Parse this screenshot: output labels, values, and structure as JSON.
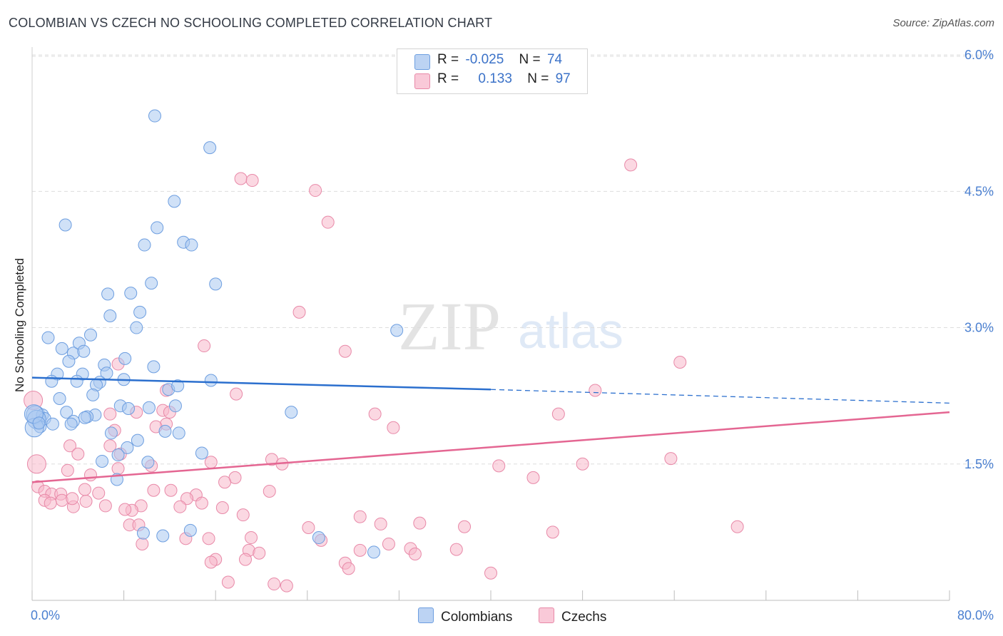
{
  "header": {
    "title": "COLOMBIAN VS CZECH NO SCHOOLING COMPLETED CORRELATION CHART",
    "source": "Source: ZipAtlas.com"
  },
  "watermark": {
    "zip": "ZIP",
    "atlas": "atlas"
  },
  "colors": {
    "blue_fill": "#a9c8f0",
    "blue_stroke": "#6d9ee0",
    "blue_line": "#2b6fce",
    "pink_fill": "#f7b8cb",
    "pink_stroke": "#e889a8",
    "pink_line": "#e46692",
    "tick_text": "#4a7fd0",
    "grid": "#dddddd"
  },
  "legend": {
    "rows": [
      {
        "r_label": "R =",
        "r_value": "-0.025",
        "n_label": "N =",
        "n_value": "74"
      },
      {
        "r_label": "R =",
        "r_value": "0.133",
        "n_label": "N =",
        "n_value": "97"
      }
    ]
  },
  "bottom_legend": {
    "colombians": "Colombians",
    "czechs": "Czechs"
  },
  "chart_data": {
    "type": "scatter",
    "title": "COLOMBIAN VS CZECH NO SCHOOLING COMPLETED CORRELATION CHART",
    "xlabel": "",
    "ylabel": "No Schooling Completed",
    "xlim": [
      0,
      80
    ],
    "ylim": [
      0,
      6.15
    ],
    "x_tick_labels": [
      "0.0%",
      "80.0%"
    ],
    "y_ticks": [
      1.5,
      3.0,
      4.5,
      6.0
    ],
    "y_tick_labels": [
      "1.5%",
      "3.0%",
      "4.5%",
      "6.0%"
    ],
    "grid": "horizontal dashed",
    "legend_placement": "top-center",
    "series": [
      {
        "name": "Colombians",
        "r": -0.025,
        "n": 74,
        "trend": {
          "x_start": 0,
          "y_start": 2.45,
          "x_solid_end": 40,
          "y_solid_end": 2.32,
          "x_end": 80,
          "y_end": 2.17
        },
        "points": [
          [
            10.7,
            5.33
          ],
          [
            15.5,
            4.98
          ],
          [
            12.4,
            4.39
          ],
          [
            2.9,
            4.13
          ],
          [
            10.9,
            4.1
          ],
          [
            9.8,
            3.91
          ],
          [
            13.2,
            3.94
          ],
          [
            13.9,
            3.91
          ],
          [
            16.0,
            3.48
          ],
          [
            10.4,
            3.49
          ],
          [
            6.6,
            3.37
          ],
          [
            8.6,
            3.38
          ],
          [
            9.4,
            3.17
          ],
          [
            6.8,
            3.13
          ],
          [
            9.1,
            3.0
          ],
          [
            31.8,
            2.97
          ],
          [
            1.4,
            2.89
          ],
          [
            5.1,
            2.92
          ],
          [
            3.6,
            2.72
          ],
          [
            4.1,
            2.83
          ],
          [
            4.5,
            2.74
          ],
          [
            2.6,
            2.77
          ],
          [
            8.1,
            2.66
          ],
          [
            3.2,
            2.63
          ],
          [
            6.3,
            2.59
          ],
          [
            10.6,
            2.57
          ],
          [
            4.4,
            2.49
          ],
          [
            6.5,
            2.5
          ],
          [
            2.2,
            2.49
          ],
          [
            1.7,
            2.41
          ],
          [
            3.9,
            2.41
          ],
          [
            5.9,
            2.4
          ],
          [
            8.0,
            2.43
          ],
          [
            5.6,
            2.37
          ],
          [
            15.6,
            2.42
          ],
          [
            11.9,
            2.32
          ],
          [
            12.7,
            2.36
          ],
          [
            2.4,
            2.22
          ],
          [
            5.3,
            2.26
          ],
          [
            7.7,
            2.14
          ],
          [
            12.5,
            2.14
          ],
          [
            10.2,
            2.12
          ],
          [
            8.4,
            2.11
          ],
          [
            3.0,
            2.07
          ],
          [
            0.3,
            2.04
          ],
          [
            0.9,
            2.04
          ],
          [
            1.1,
            2.0
          ],
          [
            0.4,
            1.99
          ],
          [
            22.6,
            2.07
          ],
          [
            5.5,
            2.04
          ],
          [
            4.8,
            2.02
          ],
          [
            4.6,
            2.01
          ],
          [
            3.6,
            1.97
          ],
          [
            1.8,
            1.94
          ],
          [
            3.4,
            1.94
          ],
          [
            0.7,
            1.91
          ],
          [
            0.2,
            1.9
          ],
          [
            6.9,
            1.84
          ],
          [
            11.6,
            1.86
          ],
          [
            12.8,
            1.84
          ],
          [
            9.2,
            1.76
          ],
          [
            8.3,
            1.68
          ],
          [
            7.5,
            1.6
          ],
          [
            14.8,
            1.62
          ],
          [
            6.1,
            1.53
          ],
          [
            10.1,
            1.52
          ],
          [
            7.4,
            1.33
          ],
          [
            9.7,
            0.74
          ],
          [
            11.4,
            0.71
          ],
          [
            13.8,
            0.77
          ],
          [
            25.0,
            0.69
          ],
          [
            29.8,
            0.53
          ],
          [
            0.15,
            2.05
          ],
          [
            0.6,
            1.95
          ]
        ]
      },
      {
        "name": "Czechs",
        "r": 0.133,
        "n": 97,
        "trend": {
          "x_start": 0,
          "y_start": 1.3,
          "x_end": 80,
          "y_end": 2.07
        },
        "points": [
          [
            52.2,
            4.79
          ],
          [
            18.2,
            4.64
          ],
          [
            19.2,
            4.62
          ],
          [
            24.7,
            4.51
          ],
          [
            25.8,
            4.16
          ],
          [
            23.3,
            3.17
          ],
          [
            27.3,
            2.74
          ],
          [
            15.0,
            2.8
          ],
          [
            56.5,
            2.62
          ],
          [
            7.5,
            2.6
          ],
          [
            11.7,
            2.31
          ],
          [
            49.1,
            2.31
          ],
          [
            17.8,
            2.27
          ],
          [
            0.1,
            2.2
          ],
          [
            9.1,
            2.07
          ],
          [
            6.8,
            2.05
          ],
          [
            11.4,
            2.09
          ],
          [
            12.0,
            2.07
          ],
          [
            29.9,
            2.05
          ],
          [
            45.9,
            2.05
          ],
          [
            11.7,
            1.94
          ],
          [
            31.5,
            1.9
          ],
          [
            10.8,
            1.91
          ],
          [
            7.2,
            1.87
          ],
          [
            3.3,
            1.7
          ],
          [
            6.8,
            1.7
          ],
          [
            4.0,
            1.61
          ],
          [
            7.7,
            1.61
          ],
          [
            20.9,
            1.55
          ],
          [
            21.8,
            1.5
          ],
          [
            15.6,
            1.52
          ],
          [
            40.7,
            1.48
          ],
          [
            48.0,
            1.5
          ],
          [
            55.7,
            1.56
          ],
          [
            10.4,
            1.48
          ],
          [
            7.5,
            1.45
          ],
          [
            3.1,
            1.43
          ],
          [
            5.1,
            1.38
          ],
          [
            17.7,
            1.35
          ],
          [
            16.8,
            1.3
          ],
          [
            43.7,
            1.35
          ],
          [
            0.4,
            1.5
          ],
          [
            0.5,
            1.25
          ],
          [
            1.1,
            1.2
          ],
          [
            1.7,
            1.17
          ],
          [
            2.5,
            1.17
          ],
          [
            4.6,
            1.22
          ],
          [
            5.8,
            1.18
          ],
          [
            12.1,
            1.21
          ],
          [
            10.6,
            1.21
          ],
          [
            20.7,
            1.2
          ],
          [
            14.3,
            1.16
          ],
          [
            13.5,
            1.12
          ],
          [
            1.1,
            1.1
          ],
          [
            2.6,
            1.1
          ],
          [
            4.7,
            1.09
          ],
          [
            1.6,
            1.07
          ],
          [
            3.6,
            1.03
          ],
          [
            6.4,
            1.04
          ],
          [
            9.5,
            1.04
          ],
          [
            12.9,
            1.03
          ],
          [
            14.8,
            1.07
          ],
          [
            16.6,
            1.02
          ],
          [
            8.7,
            0.99
          ],
          [
            8.1,
            1.0
          ],
          [
            18.4,
            0.94
          ],
          [
            28.6,
            0.92
          ],
          [
            30.4,
            0.84
          ],
          [
            33.8,
            0.85
          ],
          [
            24.1,
            0.8
          ],
          [
            37.7,
            0.81
          ],
          [
            61.5,
            0.81
          ],
          [
            8.5,
            0.83
          ],
          [
            9.3,
            0.83
          ],
          [
            45.4,
            0.75
          ],
          [
            19.1,
            0.69
          ],
          [
            13.4,
            0.68
          ],
          [
            15.4,
            0.68
          ],
          [
            25.2,
            0.66
          ],
          [
            31.1,
            0.62
          ],
          [
            9.6,
            0.62
          ],
          [
            18.9,
            0.55
          ],
          [
            19.8,
            0.52
          ],
          [
            33.0,
            0.57
          ],
          [
            33.4,
            0.51
          ],
          [
            37.0,
            0.56
          ],
          [
            16.0,
            0.45
          ],
          [
            15.6,
            0.42
          ],
          [
            18.6,
            0.45
          ],
          [
            27.3,
            0.41
          ],
          [
            27.6,
            0.35
          ],
          [
            40.0,
            0.3
          ],
          [
            17.1,
            0.2
          ],
          [
            21.1,
            0.18
          ],
          [
            22.2,
            0.16
          ],
          [
            28.6,
            0.55
          ],
          [
            3.5,
            1.12
          ]
        ]
      }
    ]
  }
}
